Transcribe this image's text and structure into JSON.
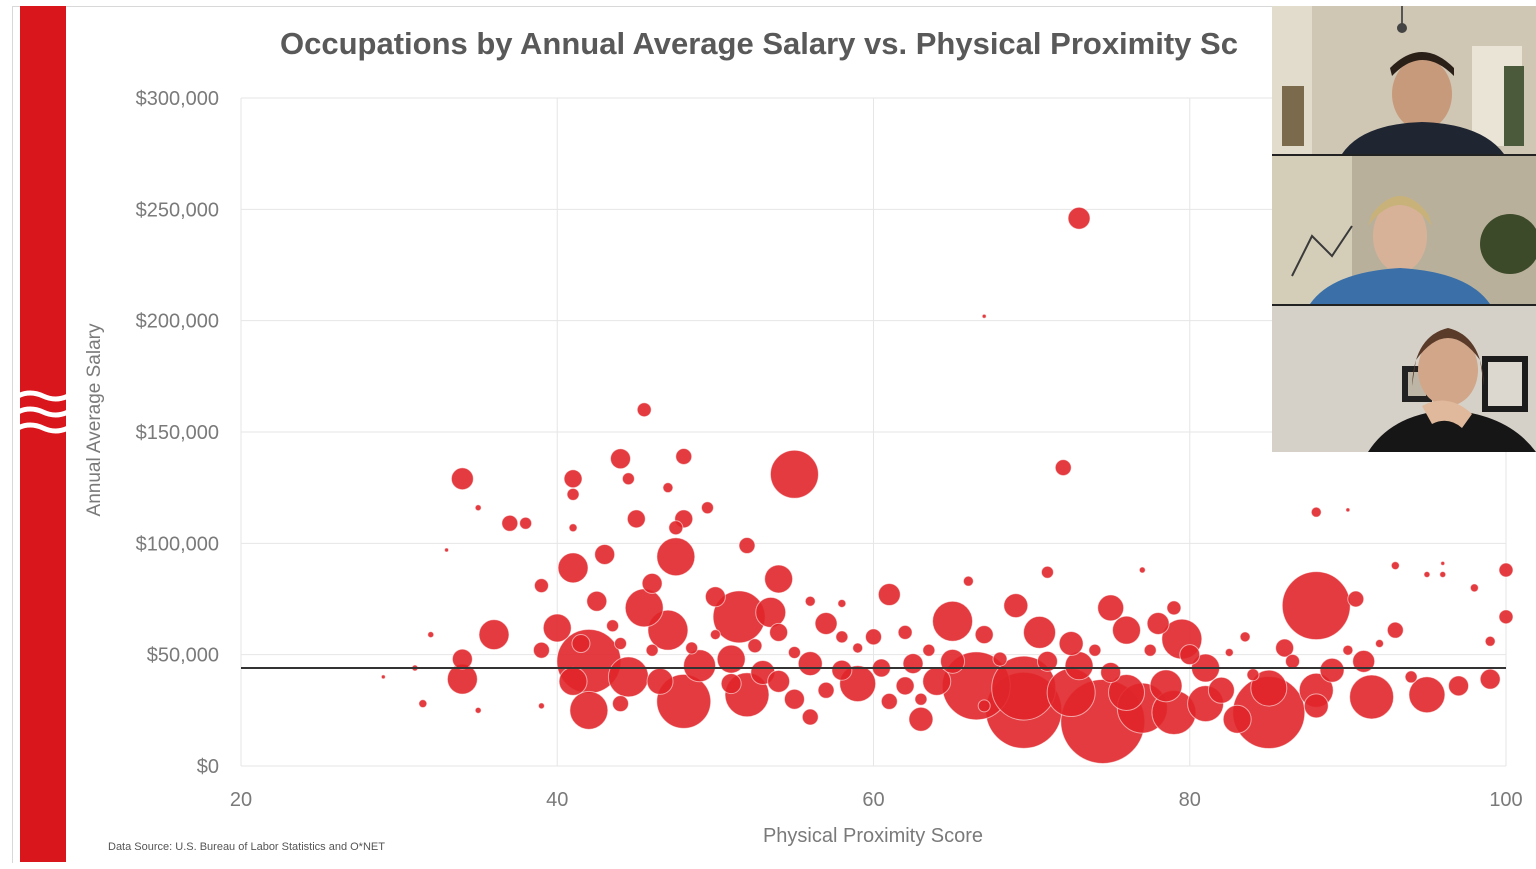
{
  "slide": {
    "title": "Occupations by Annual Average Salary vs. Physical Proximity Sc",
    "source_note": "Data Source: U.S. Bureau of Labor Statistics and O*NET",
    "colors": {
      "accent": "#d9161c",
      "bubble": "#e0262a",
      "reference_line": "#333333",
      "grid": "#e6e6e6",
      "text": "#7a7a7a",
      "title": "#595959"
    }
  },
  "video_call": {
    "participants": [
      {
        "tile": "participant-1"
      },
      {
        "tile": "participant-2"
      },
      {
        "tile": "participant-3"
      }
    ]
  },
  "chart_data": {
    "type": "scatter",
    "title": "Occupations by Annual Average Salary vs. Physical Proximity Sc",
    "xlabel": "Physical Proximity Score",
    "ylabel": "Annual Average Salary",
    "xlim": [
      20,
      100
    ],
    "ylim": [
      0,
      300000
    ],
    "x_ticks": [
      20,
      40,
      60,
      80,
      100
    ],
    "x_tick_labels": [
      "20",
      "40",
      "60",
      "80",
      "100"
    ],
    "y_ticks": [
      0,
      50000,
      100000,
      150000,
      200000,
      250000,
      300000
    ],
    "y_tick_labels": [
      "$0",
      "$50,000",
      "$100,000",
      "$150,000",
      "$200,000",
      "$250,000",
      "$300,000"
    ],
    "grid": true,
    "reference_line_y": 44000,
    "points": [
      {
        "x": 73,
        "y": 246000,
        "r": 11
      },
      {
        "x": 67,
        "y": 202000,
        "r": 2
      },
      {
        "x": 45.5,
        "y": 160000,
        "r": 7
      },
      {
        "x": 34,
        "y": 129000,
        "r": 11
      },
      {
        "x": 41,
        "y": 129000,
        "r": 9
      },
      {
        "x": 41,
        "y": 122000,
        "r": 6
      },
      {
        "x": 44,
        "y": 138000,
        "r": 10
      },
      {
        "x": 48,
        "y": 139000,
        "r": 8
      },
      {
        "x": 44.5,
        "y": 129000,
        "r": 6
      },
      {
        "x": 47,
        "y": 125000,
        "r": 5
      },
      {
        "x": 55,
        "y": 131000,
        "r": 24
      },
      {
        "x": 72,
        "y": 134000,
        "r": 8
      },
      {
        "x": 37,
        "y": 109000,
        "r": 8
      },
      {
        "x": 38,
        "y": 109000,
        "r": 6
      },
      {
        "x": 35,
        "y": 116000,
        "r": 3
      },
      {
        "x": 41,
        "y": 107000,
        "r": 4
      },
      {
        "x": 45,
        "y": 111000,
        "r": 9
      },
      {
        "x": 48,
        "y": 111000,
        "r": 9
      },
      {
        "x": 49.5,
        "y": 116000,
        "r": 6
      },
      {
        "x": 47.5,
        "y": 107000,
        "r": 7
      },
      {
        "x": 88,
        "y": 114000,
        "r": 5
      },
      {
        "x": 90,
        "y": 115000,
        "r": 2
      },
      {
        "x": 33,
        "y": 97000,
        "r": 2
      },
      {
        "x": 41,
        "y": 89000,
        "r": 15
      },
      {
        "x": 43,
        "y": 95000,
        "r": 10
      },
      {
        "x": 47.5,
        "y": 94000,
        "r": 19
      },
      {
        "x": 52,
        "y": 99000,
        "r": 8
      },
      {
        "x": 46,
        "y": 82000,
        "r": 10
      },
      {
        "x": 39,
        "y": 81000,
        "r": 7
      },
      {
        "x": 54,
        "y": 84000,
        "r": 14
      },
      {
        "x": 71,
        "y": 87000,
        "r": 6
      },
      {
        "x": 77,
        "y": 88000,
        "r": 3
      },
      {
        "x": 100,
        "y": 88000,
        "r": 7
      },
      {
        "x": 95,
        "y": 86000,
        "r": 3
      },
      {
        "x": 96,
        "y": 86000,
        "r": 3
      },
      {
        "x": 93,
        "y": 90000,
        "r": 4
      },
      {
        "x": 61,
        "y": 77000,
        "r": 11
      },
      {
        "x": 66,
        "y": 83000,
        "r": 5
      },
      {
        "x": 88,
        "y": 72000,
        "r": 34
      },
      {
        "x": 90.5,
        "y": 75000,
        "r": 8
      },
      {
        "x": 98,
        "y": 80000,
        "r": 4
      },
      {
        "x": 100,
        "y": 67000,
        "r": 7
      },
      {
        "x": 42.5,
        "y": 74000,
        "r": 10
      },
      {
        "x": 45.5,
        "y": 71000,
        "r": 19
      },
      {
        "x": 50,
        "y": 76000,
        "r": 10
      },
      {
        "x": 51.5,
        "y": 67000,
        "r": 26
      },
      {
        "x": 53.5,
        "y": 69000,
        "r": 15
      },
      {
        "x": 56,
        "y": 74000,
        "r": 5
      },
      {
        "x": 58,
        "y": 73000,
        "r": 4
      },
      {
        "x": 65,
        "y": 65000,
        "r": 20
      },
      {
        "x": 69,
        "y": 72000,
        "r": 12
      },
      {
        "x": 75,
        "y": 71000,
        "r": 13
      },
      {
        "x": 79,
        "y": 71000,
        "r": 7
      },
      {
        "x": 36,
        "y": 59000,
        "r": 15
      },
      {
        "x": 40,
        "y": 62000,
        "r": 14
      },
      {
        "x": 47,
        "y": 61000,
        "r": 20
      },
      {
        "x": 57,
        "y": 64000,
        "r": 11
      },
      {
        "x": 60,
        "y": 58000,
        "r": 8
      },
      {
        "x": 62,
        "y": 60000,
        "r": 7
      },
      {
        "x": 67,
        "y": 59000,
        "r": 9
      },
      {
        "x": 70.5,
        "y": 60000,
        "r": 16
      },
      {
        "x": 72.5,
        "y": 55000,
        "r": 12
      },
      {
        "x": 76,
        "y": 61000,
        "r": 14
      },
      {
        "x": 78,
        "y": 64000,
        "r": 11
      },
      {
        "x": 79.5,
        "y": 57000,
        "r": 20
      },
      {
        "x": 83.5,
        "y": 58000,
        "r": 5
      },
      {
        "x": 86,
        "y": 53000,
        "r": 9
      },
      {
        "x": 93,
        "y": 61000,
        "r": 8
      },
      {
        "x": 92,
        "y": 55000,
        "r": 4
      },
      {
        "x": 99,
        "y": 56000,
        "r": 5
      },
      {
        "x": 32,
        "y": 59000,
        "r": 3
      },
      {
        "x": 34,
        "y": 48000,
        "r": 10
      },
      {
        "x": 39,
        "y": 52000,
        "r": 8
      },
      {
        "x": 42,
        "y": 47000,
        "r": 32
      },
      {
        "x": 44.5,
        "y": 40000,
        "r": 20
      },
      {
        "x": 49,
        "y": 45000,
        "r": 16
      },
      {
        "x": 51,
        "y": 48000,
        "r": 14
      },
      {
        "x": 53,
        "y": 42000,
        "r": 12
      },
      {
        "x": 56,
        "y": 46000,
        "r": 12
      },
      {
        "x": 58,
        "y": 43000,
        "r": 10
      },
      {
        "x": 60.5,
        "y": 44000,
        "r": 9
      },
      {
        "x": 62.5,
        "y": 46000,
        "r": 10
      },
      {
        "x": 65,
        "y": 47000,
        "r": 12
      },
      {
        "x": 73,
        "y": 45000,
        "r": 14
      },
      {
        "x": 75,
        "y": 42000,
        "r": 10
      },
      {
        "x": 81,
        "y": 44000,
        "r": 14
      },
      {
        "x": 84,
        "y": 41000,
        "r": 6
      },
      {
        "x": 89,
        "y": 43000,
        "r": 12
      },
      {
        "x": 91,
        "y": 47000,
        "r": 11
      },
      {
        "x": 94,
        "y": 40000,
        "r": 6
      },
      {
        "x": 31,
        "y": 44000,
        "r": 3
      },
      {
        "x": 34,
        "y": 39000,
        "r": 15
      },
      {
        "x": 41,
        "y": 38000,
        "r": 14
      },
      {
        "x": 46.5,
        "y": 38000,
        "r": 13
      },
      {
        "x": 51,
        "y": 37000,
        "r": 10
      },
      {
        "x": 54,
        "y": 38000,
        "r": 11
      },
      {
        "x": 59,
        "y": 37000,
        "r": 18
      },
      {
        "x": 62,
        "y": 36000,
        "r": 9
      },
      {
        "x": 64,
        "y": 38000,
        "r": 14
      },
      {
        "x": 66.5,
        "y": 36000,
        "r": 34
      },
      {
        "x": 69.5,
        "y": 35000,
        "r": 32
      },
      {
        "x": 72.5,
        "y": 33000,
        "r": 24
      },
      {
        "x": 76,
        "y": 33000,
        "r": 18
      },
      {
        "x": 78.5,
        "y": 36000,
        "r": 16
      },
      {
        "x": 82,
        "y": 34000,
        "r": 13
      },
      {
        "x": 85,
        "y": 35000,
        "r": 18
      },
      {
        "x": 88,
        "y": 34000,
        "r": 17
      },
      {
        "x": 91.5,
        "y": 31000,
        "r": 22
      },
      {
        "x": 95,
        "y": 32000,
        "r": 18
      },
      {
        "x": 97,
        "y": 36000,
        "r": 10
      },
      {
        "x": 99,
        "y": 39000,
        "r": 10
      },
      {
        "x": 48,
        "y": 29000,
        "r": 27
      },
      {
        "x": 52,
        "y": 32000,
        "r": 22
      },
      {
        "x": 55,
        "y": 30000,
        "r": 10
      },
      {
        "x": 57,
        "y": 34000,
        "r": 8
      },
      {
        "x": 61,
        "y": 29000,
        "r": 8
      },
      {
        "x": 63,
        "y": 30000,
        "r": 6
      },
      {
        "x": 69.5,
        "y": 25000,
        "r": 38
      },
      {
        "x": 74.5,
        "y": 20000,
        "r": 42
      },
      {
        "x": 77,
        "y": 26000,
        "r": 25
      },
      {
        "x": 79,
        "y": 24000,
        "r": 22
      },
      {
        "x": 81,
        "y": 28000,
        "r": 18
      },
      {
        "x": 85,
        "y": 24000,
        "r": 36
      },
      {
        "x": 83,
        "y": 21000,
        "r": 14
      },
      {
        "x": 88,
        "y": 27000,
        "r": 12
      },
      {
        "x": 42,
        "y": 25000,
        "r": 19
      },
      {
        "x": 44,
        "y": 28000,
        "r": 8
      },
      {
        "x": 56,
        "y": 22000,
        "r": 8
      },
      {
        "x": 63,
        "y": 21000,
        "r": 12
      },
      {
        "x": 67,
        "y": 27000,
        "r": 6
      },
      {
        "x": 35,
        "y": 25000,
        "r": 3
      },
      {
        "x": 31.5,
        "y": 28000,
        "r": 4
      },
      {
        "x": 39,
        "y": 27000,
        "r": 3
      },
      {
        "x": 29,
        "y": 40000,
        "r": 2
      },
      {
        "x": 46,
        "y": 52000,
        "r": 6
      },
      {
        "x": 43.5,
        "y": 63000,
        "r": 6
      },
      {
        "x": 54,
        "y": 60000,
        "r": 9
      },
      {
        "x": 58,
        "y": 58000,
        "r": 6
      },
      {
        "x": 59,
        "y": 53000,
        "r": 5
      },
      {
        "x": 55,
        "y": 51000,
        "r": 6
      },
      {
        "x": 68,
        "y": 48000,
        "r": 7
      },
      {
        "x": 71,
        "y": 47000,
        "r": 10
      },
      {
        "x": 80,
        "y": 50000,
        "r": 10
      },
      {
        "x": 86.5,
        "y": 47000,
        "r": 7
      },
      {
        "x": 96,
        "y": 91000,
        "r": 2
      },
      {
        "x": 50,
        "y": 59000,
        "r": 5
      },
      {
        "x": 52.5,
        "y": 54000,
        "r": 7
      },
      {
        "x": 41.5,
        "y": 55000,
        "r": 9
      },
      {
        "x": 44,
        "y": 55000,
        "r": 6
      },
      {
        "x": 48.5,
        "y": 53000,
        "r": 6
      },
      {
        "x": 63.5,
        "y": 52000,
        "r": 6
      },
      {
        "x": 74,
        "y": 52000,
        "r": 6
      },
      {
        "x": 77.5,
        "y": 52000,
        "r": 6
      },
      {
        "x": 82.5,
        "y": 51000,
        "r": 4
      },
      {
        "x": 90,
        "y": 52000,
        "r": 5
      }
    ]
  }
}
